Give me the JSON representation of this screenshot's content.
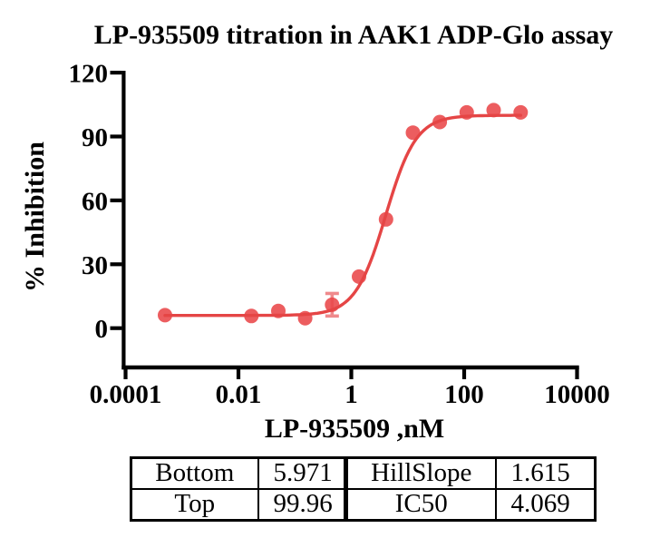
{
  "chart_data": {
    "type": "scatter",
    "subtype": "dose-response-titration-curve",
    "title": "LP-935509 titration in AAK1 ADP-Glo assay",
    "xlabel": "LP-935509 ,nM",
    "ylabel": "% Inhibition",
    "x_scale": "log10",
    "xlim": [
      0.0001,
      10000
    ],
    "ylim": [
      0,
      120
    ],
    "grid": false,
    "legend": "none",
    "x_ticks": [
      {
        "value": 0.0001,
        "label": "0.0001"
      },
      {
        "value": 0.01,
        "label": "0.01"
      },
      {
        "value": 1,
        "label": "1"
      },
      {
        "value": 100,
        "label": "100"
      },
      {
        "value": 10000,
        "label": "10000"
      }
    ],
    "y_ticks": [
      {
        "value": 0,
        "label": "0"
      },
      {
        "value": 30,
        "label": "30"
      },
      {
        "value": 60,
        "label": "60"
      },
      {
        "value": 90,
        "label": "90"
      },
      {
        "value": 120,
        "label": "120"
      }
    ],
    "points": [
      {
        "x": 0.0005,
        "y": 6.1
      },
      {
        "x": 0.017,
        "y": 5.7
      },
      {
        "x": 0.051,
        "y": 8.1
      },
      {
        "x": 0.152,
        "y": 4.7
      },
      {
        "x": 0.457,
        "y": 11.0,
        "error": 5.3
      },
      {
        "x": 1.37,
        "y": 24.2
      },
      {
        "x": 4.12,
        "y": 51.1
      },
      {
        "x": 12.35,
        "y": 91.8
      },
      {
        "x": 37,
        "y": 96.8
      },
      {
        "x": 111,
        "y": 101.3
      },
      {
        "x": 333,
        "y": 102.4
      },
      {
        "x": 1000,
        "y": 101.3
      }
    ],
    "fit_curve": {
      "model": "four-parameter-logistic",
      "bottom": 5.971,
      "top": 99.96,
      "hillslope": 1.615,
      "ic50": 4.069
    },
    "colors": {
      "curve": "#e54545",
      "points": "#e94749",
      "error_bars": "#ef8a8c",
      "axis": "#000000",
      "text": "#000000"
    }
  },
  "fit_table": {
    "rows": [
      {
        "param1": "Bottom",
        "value1": "5.971",
        "param2": "HillSlope",
        "value2": "1.615"
      },
      {
        "param1": "Top",
        "value1": "99.96",
        "param2": "IC50",
        "value2": "4.069"
      }
    ]
  }
}
